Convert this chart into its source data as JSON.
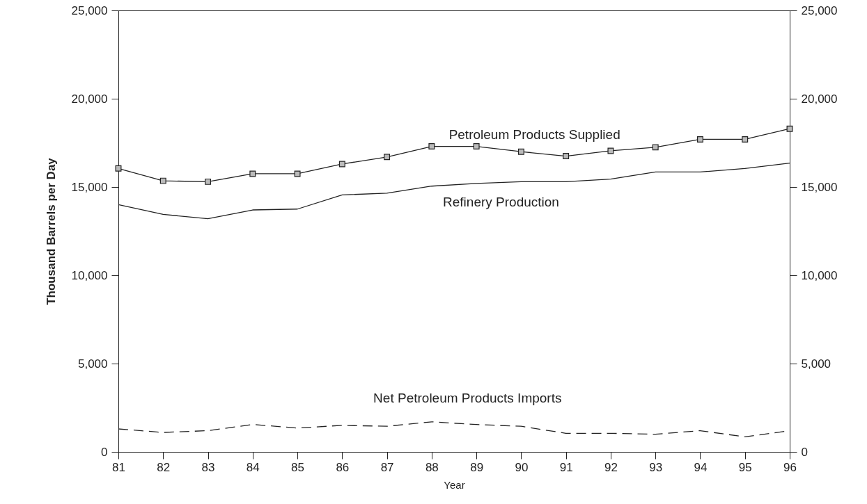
{
  "chart_data": {
    "type": "line",
    "xlabel": "Year",
    "ylabel": "Thousand Barrels per Day",
    "categories": [
      "81",
      "82",
      "83",
      "84",
      "85",
      "86",
      "87",
      "88",
      "89",
      "90",
      "91",
      "92",
      "93",
      "94",
      "95",
      "96"
    ],
    "series": [
      {
        "name": "Petroleum Products Supplied",
        "color": "#222222",
        "marker": "square",
        "values": [
          16050,
          15350,
          15300,
          15750,
          15750,
          16300,
          16700,
          17300,
          17300,
          17000,
          16750,
          17050,
          17250,
          17700,
          17700,
          18300
        ]
      },
      {
        "name": "Refinery Production",
        "color": "#222222",
        "values": [
          14000,
          13450,
          13200,
          13700,
          13750,
          14550,
          14650,
          15050,
          15200,
          15300,
          15300,
          15450,
          15850,
          15850,
          16050,
          16350
        ]
      },
      {
        "name": "Net Petroleum Products Imports",
        "color": "#222222",
        "line_style": "dashed",
        "values": [
          1300,
          1100,
          1200,
          1550,
          1350,
          1500,
          1450,
          1700,
          1550,
          1450,
          1050,
          1050,
          1000,
          1200,
          850,
          1200
        ]
      }
    ],
    "ylim": [
      0,
      25000
    ],
    "yticks": [
      0,
      {
        "value": 5000,
        "label": "5,000"
      },
      {
        "value": 10000,
        "label": "10,000"
      },
      {
        "value": 15000,
        "label": "15,000"
      },
      {
        "value": 20000,
        "label": "20,000"
      },
      {
        "value": 25000,
        "label": "25,000"
      }
    ],
    "y2lim": [
      0,
      25000
    ],
    "y2ticks": [
      0,
      {
        "value": 5000,
        "label": "5,000"
      },
      {
        "value": 10000,
        "label": "10,000"
      },
      {
        "value": 15000,
        "label": "15,000"
      },
      {
        "value": 20000,
        "label": "20,000"
      },
      {
        "value": 25000,
        "label": "25,000"
      }
    ],
    "grid": false
  }
}
